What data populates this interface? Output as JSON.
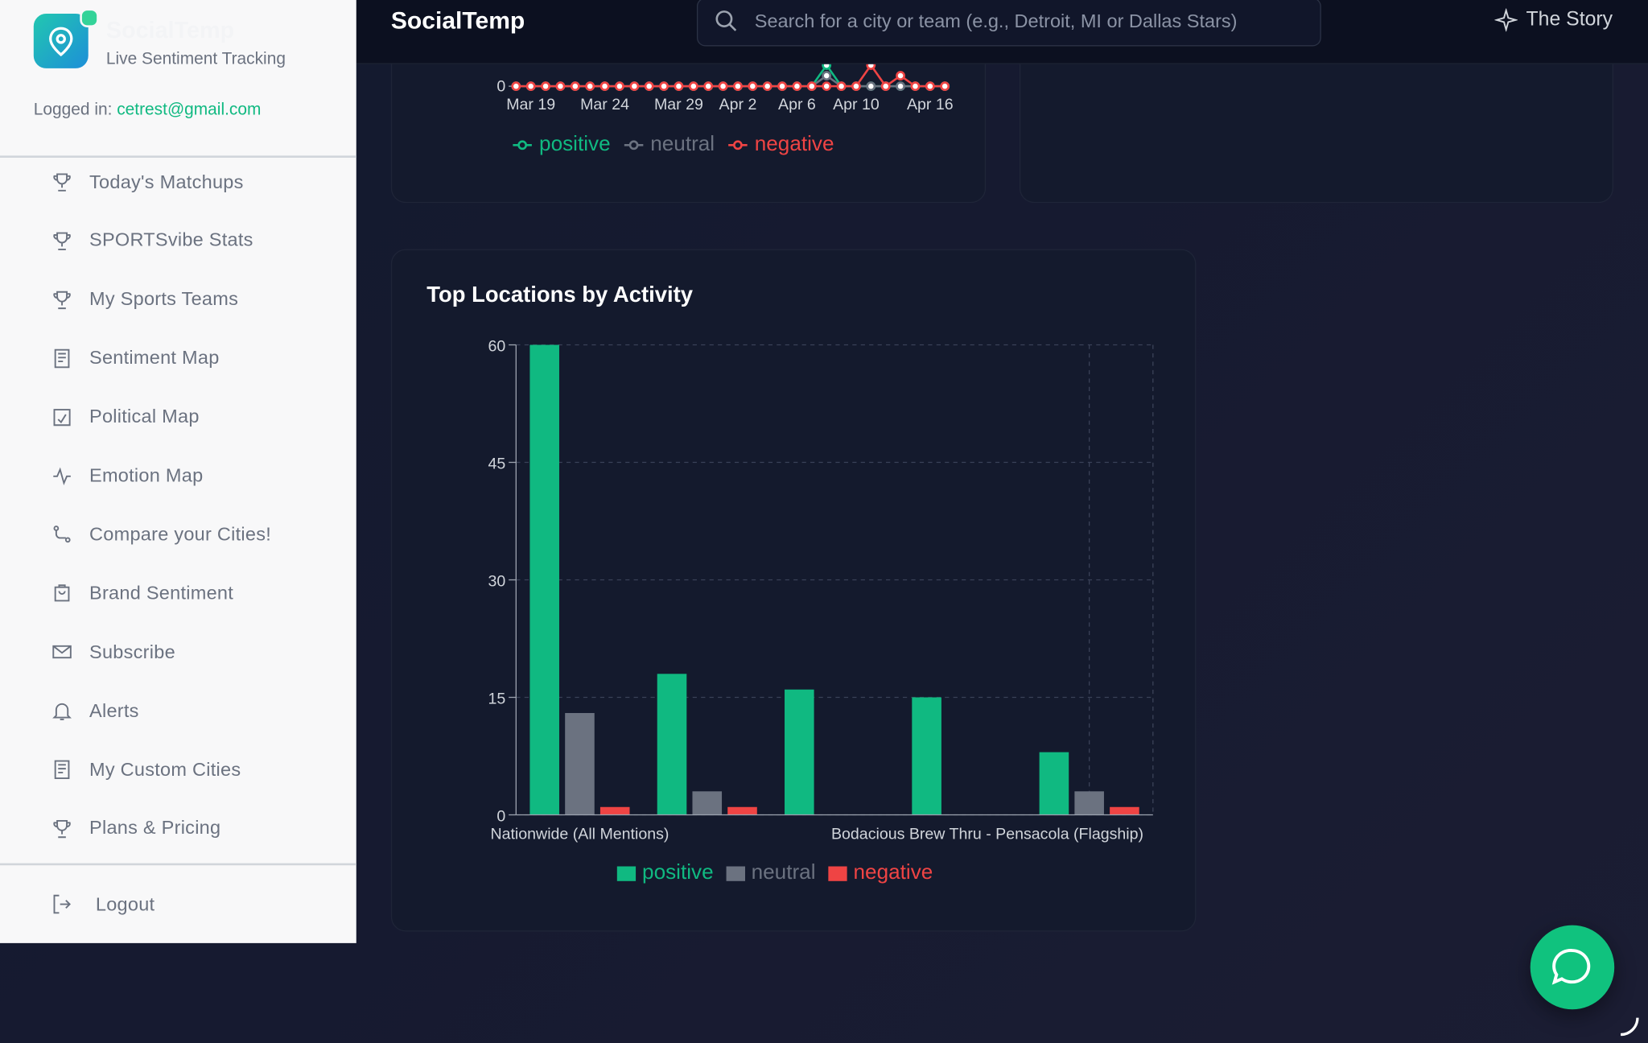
{
  "sidebar": {
    "brand": "SocialTemp",
    "tagline": "Live Sentiment Tracking",
    "login_label": "Logged in:",
    "login_email": "cetrest@gmail.com",
    "nav": [
      "Today's Matchups",
      "SPORTSvibe Stats",
      "My Sports Teams",
      "Sentiment Map",
      "Political Map",
      "Emotion Map",
      "Compare your Cities!",
      "Brand Sentiment",
      "Subscribe",
      "Alerts",
      "My Custom Cities",
      "Plans & Pricing"
    ],
    "logout": "Logout"
  },
  "header": {
    "title": "SocialTemp",
    "search_placeholder": "Search for a city or team (e.g., Detroit, MI or Dallas Stars)",
    "story": "The Story"
  },
  "chart_data": [
    {
      "type": "line",
      "categories": [
        null,
        "Mar 19",
        null,
        null,
        null,
        null,
        "Mar 24",
        null,
        null,
        null,
        null,
        "Mar 29",
        null,
        null,
        null,
        "Apr 2",
        null,
        null,
        null,
        "Apr 6",
        null,
        null,
        null,
        "Apr 10",
        null,
        null,
        null,
        null,
        "Apr 16",
        null
      ],
      "series": [
        {
          "name": "positive",
          "color": "#10b981",
          "values": [
            0,
            0,
            0,
            0,
            0,
            0,
            0,
            0,
            0,
            0,
            0,
            0,
            0,
            0,
            0,
            0,
            0,
            0,
            0,
            0,
            0,
            1,
            0,
            0,
            0,
            0,
            0,
            0,
            0,
            0
          ]
        },
        {
          "name": "neutral",
          "color": "#6b7280",
          "values": [
            0,
            0,
            0,
            0,
            0,
            0,
            0,
            0,
            0,
            0,
            0,
            0,
            0,
            0,
            0,
            0,
            0,
            0,
            0,
            0,
            0,
            0.5,
            0,
            0,
            0,
            0,
            0,
            0,
            0,
            0
          ]
        },
        {
          "name": "negative",
          "color": "#ef4444",
          "values": [
            0,
            0,
            0,
            0,
            0,
            0,
            0,
            0,
            0,
            0,
            0,
            0,
            0,
            0,
            0,
            0,
            0,
            0,
            0,
            0,
            0,
            0,
            0,
            0,
            1,
            0,
            0.5,
            0,
            0,
            0
          ]
        }
      ],
      "ylim": [
        0,
        4
      ],
      "yticks": [
        0
      ],
      "legend": "bottom"
    },
    {
      "type": "bar",
      "title": "Top Locations by Activity",
      "categories": [
        "Nationwide (All Mentions)",
        null,
        null,
        null,
        "Bodacious Brew Thru - Pensacola (Flagship)"
      ],
      "series": [
        {
          "name": "positive",
          "color": "#10b981",
          "values": [
            60,
            18,
            16,
            15,
            8
          ]
        },
        {
          "name": "neutral",
          "color": "#6b7280",
          "values": [
            13,
            3,
            0,
            0,
            3
          ]
        },
        {
          "name": "negative",
          "color": "#ef4444",
          "values": [
            1,
            1,
            0,
            0,
            1
          ]
        }
      ],
      "ylim": [
        0,
        60
      ],
      "yticks": [
        0,
        15,
        30,
        45,
        60
      ],
      "grid": true,
      "legend": "bottom"
    }
  ]
}
